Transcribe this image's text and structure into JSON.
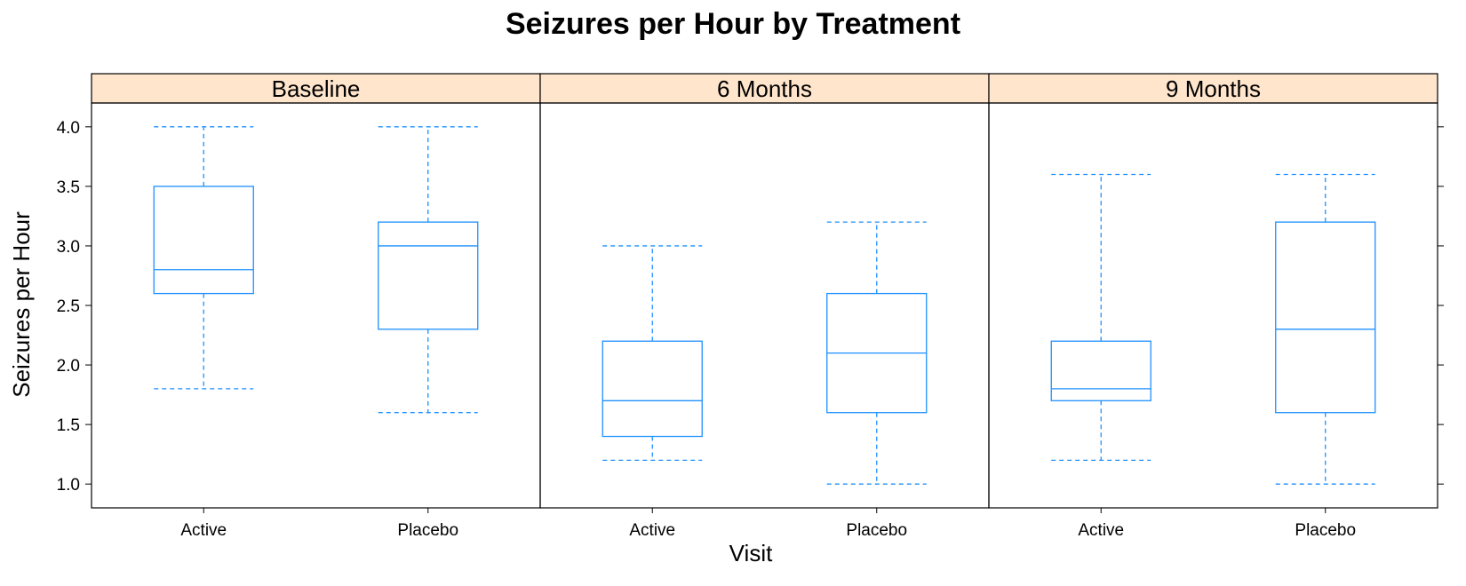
{
  "chart_data": {
    "type": "box",
    "title": "Seizures per Hour by Treatment",
    "xlabel": "Visit",
    "ylabel": "Seizures per Hour",
    "ylim": [
      0.8,
      4.2
    ],
    "yticks": [
      1.0,
      1.5,
      2.0,
      2.5,
      3.0,
      3.5,
      4.0
    ],
    "ytick_labels": [
      "1.0",
      "1.5",
      "2.0",
      "2.5",
      "3.0",
      "3.5",
      "4.0"
    ],
    "categories": [
      "Active",
      "Placebo"
    ],
    "panels": [
      {
        "strip": "Baseline",
        "boxes": [
          {
            "category": "Active",
            "min": 1.8,
            "q1": 2.6,
            "median": 2.8,
            "q3": 3.5,
            "max": 4.0
          },
          {
            "category": "Placebo",
            "min": 1.6,
            "q1": 2.3,
            "median": 3.0,
            "q3": 3.2,
            "max": 4.0
          }
        ]
      },
      {
        "strip": "6 Months",
        "boxes": [
          {
            "category": "Active",
            "min": 1.2,
            "q1": 1.4,
            "median": 1.7,
            "q3": 2.2,
            "max": 3.0
          },
          {
            "category": "Placebo",
            "min": 1.0,
            "q1": 1.6,
            "median": 2.1,
            "q3": 2.6,
            "max": 3.2
          }
        ]
      },
      {
        "strip": "9 Months",
        "boxes": [
          {
            "category": "Active",
            "min": 1.2,
            "q1": 1.7,
            "median": 1.8,
            "q3": 2.2,
            "max": 3.6
          },
          {
            "category": "Placebo",
            "min": 1.0,
            "q1": 1.6,
            "median": 2.3,
            "q3": 3.2,
            "max": 3.6
          }
        ]
      }
    ],
    "colors": {
      "box": "#1E90FF",
      "strip_fill": "#FFE5CC",
      "frame": "#000000"
    }
  }
}
